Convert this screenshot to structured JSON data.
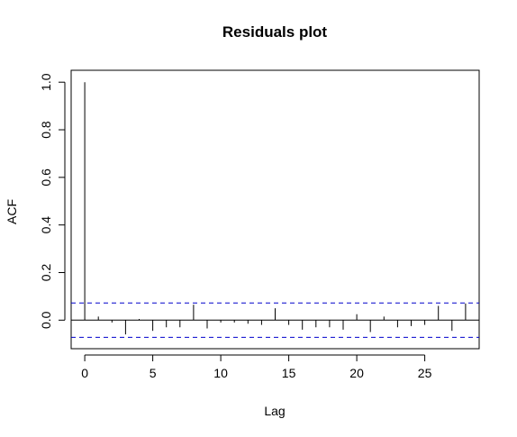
{
  "chart_data": {
    "type": "bar",
    "title": "Residuals plot",
    "xlabel": "Lag",
    "ylabel": "ACF",
    "xlim": [
      -1,
      29
    ],
    "ylim": [
      -0.12,
      1.05
    ],
    "xticks": [
      0,
      5,
      10,
      15,
      20,
      25
    ],
    "yticks": [
      0.0,
      0.2,
      0.4,
      0.6,
      0.8,
      1.0
    ],
    "xtick_labels": [
      "0",
      "5",
      "10",
      "15",
      "20",
      "25"
    ],
    "ytick_labels": [
      "0.0",
      "0.2",
      "0.4",
      "0.6",
      "0.8",
      "1.0"
    ],
    "lags": [
      0,
      1,
      2,
      3,
      4,
      5,
      6,
      7,
      8,
      9,
      10,
      11,
      12,
      13,
      14,
      15,
      16,
      17,
      18,
      19,
      20,
      21,
      22,
      23,
      24,
      25,
      26,
      27,
      28
    ],
    "acf": [
      1.0,
      0.015,
      -0.01,
      -0.06,
      0.005,
      -0.045,
      -0.03,
      -0.03,
      0.065,
      -0.035,
      -0.01,
      -0.01,
      -0.015,
      -0.02,
      0.05,
      -0.02,
      -0.04,
      -0.03,
      -0.03,
      -0.04,
      0.025,
      -0.05,
      0.015,
      -0.03,
      -0.025,
      -0.02,
      0.06,
      -0.045,
      0.07
    ],
    "confidence_bound": 0.072,
    "line_color": "#000000",
    "bound_color": "#0000cc",
    "grid": false
  }
}
